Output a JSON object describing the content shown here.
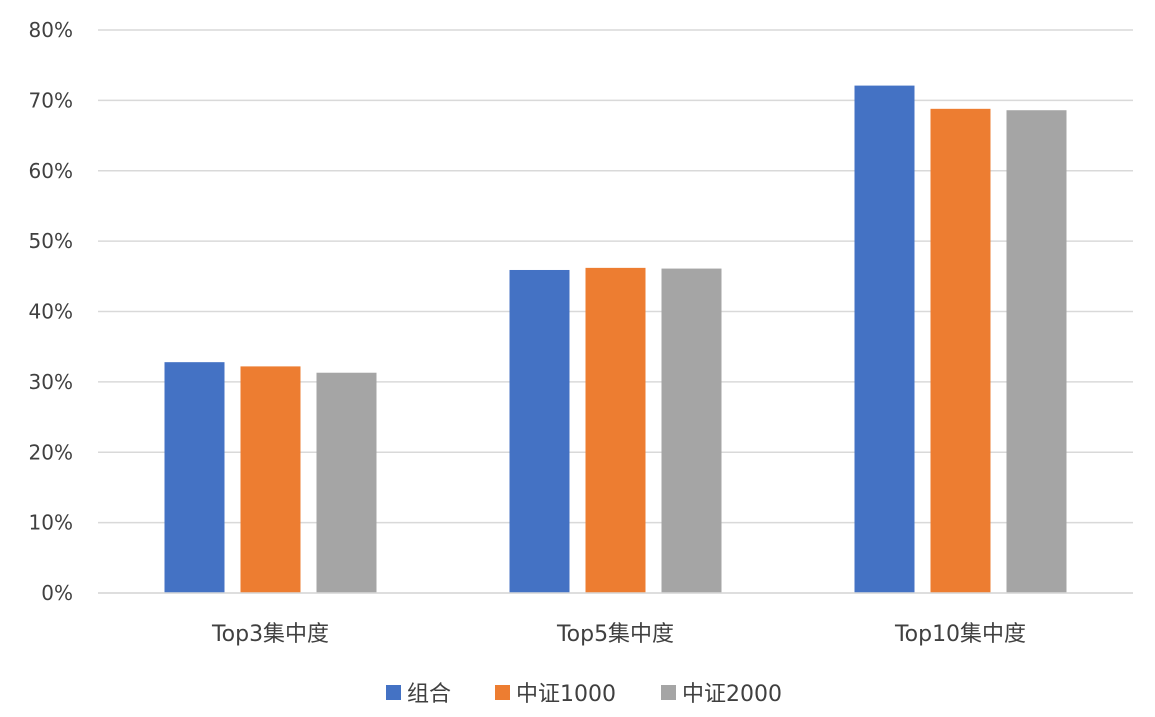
{
  "chart_data": {
    "type": "bar",
    "categories": [
      "Top3集中度",
      "Top5集中度",
      "Top10集中度"
    ],
    "series": [
      {
        "name": "组合",
        "values": [
          32.8,
          45.9,
          72.1
        ],
        "color": "#4472C4"
      },
      {
        "name": "中证1000",
        "values": [
          32.2,
          46.2,
          68.8
        ],
        "color": "#ED7D31"
      },
      {
        "name": "中证2000",
        "values": [
          31.3,
          46.1,
          68.6
        ],
        "color": "#A5A5A5"
      }
    ],
    "y_ticks": [
      "0%",
      "10%",
      "20%",
      "30%",
      "40%",
      "50%",
      "60%",
      "70%",
      "80%"
    ],
    "ylim": [
      0,
      80
    ],
    "y_unit": "%",
    "grid": true,
    "legend_position": "bottom",
    "gridline_color": "#D9D9D9"
  }
}
